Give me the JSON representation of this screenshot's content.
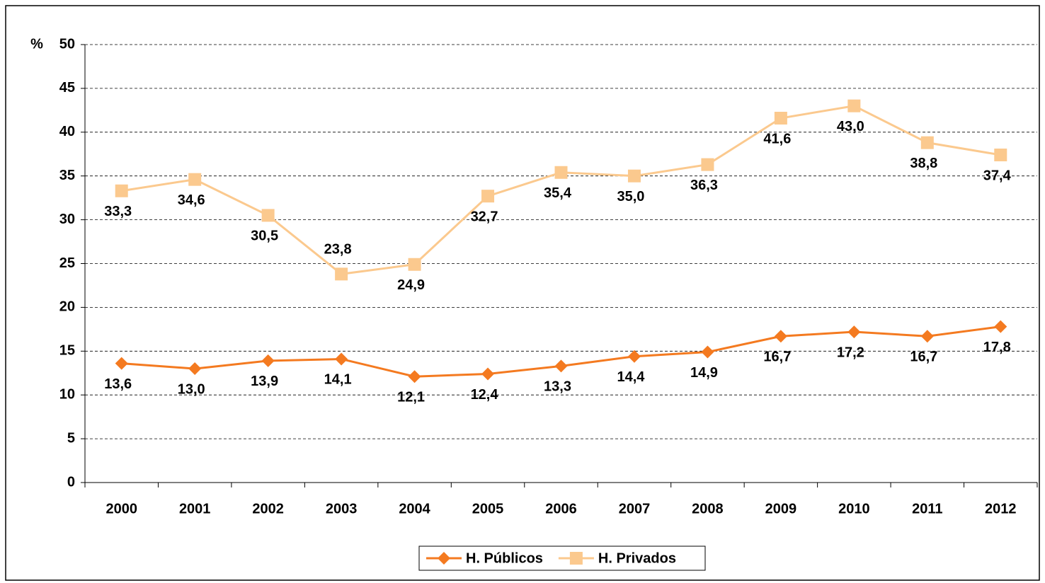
{
  "chart_data": {
    "type": "line",
    "y_label": "%",
    "categories": [
      "2000",
      "2001",
      "2002",
      "2003",
      "2004",
      "2005",
      "2006",
      "2007",
      "2008",
      "2009",
      "2010",
      "2011",
      "2012"
    ],
    "series": [
      {
        "name": "H. Públicos",
        "color": "#f47a20",
        "marker": "diamond",
        "values": [
          13.6,
          13.0,
          13.9,
          14.1,
          12.1,
          12.4,
          13.3,
          14.4,
          14.9,
          16.7,
          17.2,
          16.7,
          17.8
        ],
        "value_labels": [
          "13,6",
          "13,0",
          "13,9",
          "14,1",
          "12,1",
          "12,4",
          "13,3",
          "14,4",
          "14,9",
          "16,7",
          "17,2",
          "16,7",
          "17,8"
        ]
      },
      {
        "name": "H. Privados",
        "color": "#fbc98e",
        "marker": "square",
        "values": [
          33.3,
          34.6,
          30.5,
          23.8,
          24.9,
          32.7,
          35.4,
          35.0,
          36.3,
          41.6,
          43.0,
          38.8,
          37.4
        ],
        "value_labels": [
          "33,3",
          "34,6",
          "30,5",
          "23,8",
          "24,9",
          "32,7",
          "35,4",
          "35,0",
          "36,3",
          "41,6",
          "43,0",
          "38,8",
          "37,4"
        ]
      }
    ],
    "ylim": [
      0,
      50
    ],
    "yticks": [
      0,
      5,
      10,
      15,
      20,
      25,
      30,
      35,
      40,
      45,
      50
    ],
    "grid": true,
    "legend": "bottom"
  }
}
